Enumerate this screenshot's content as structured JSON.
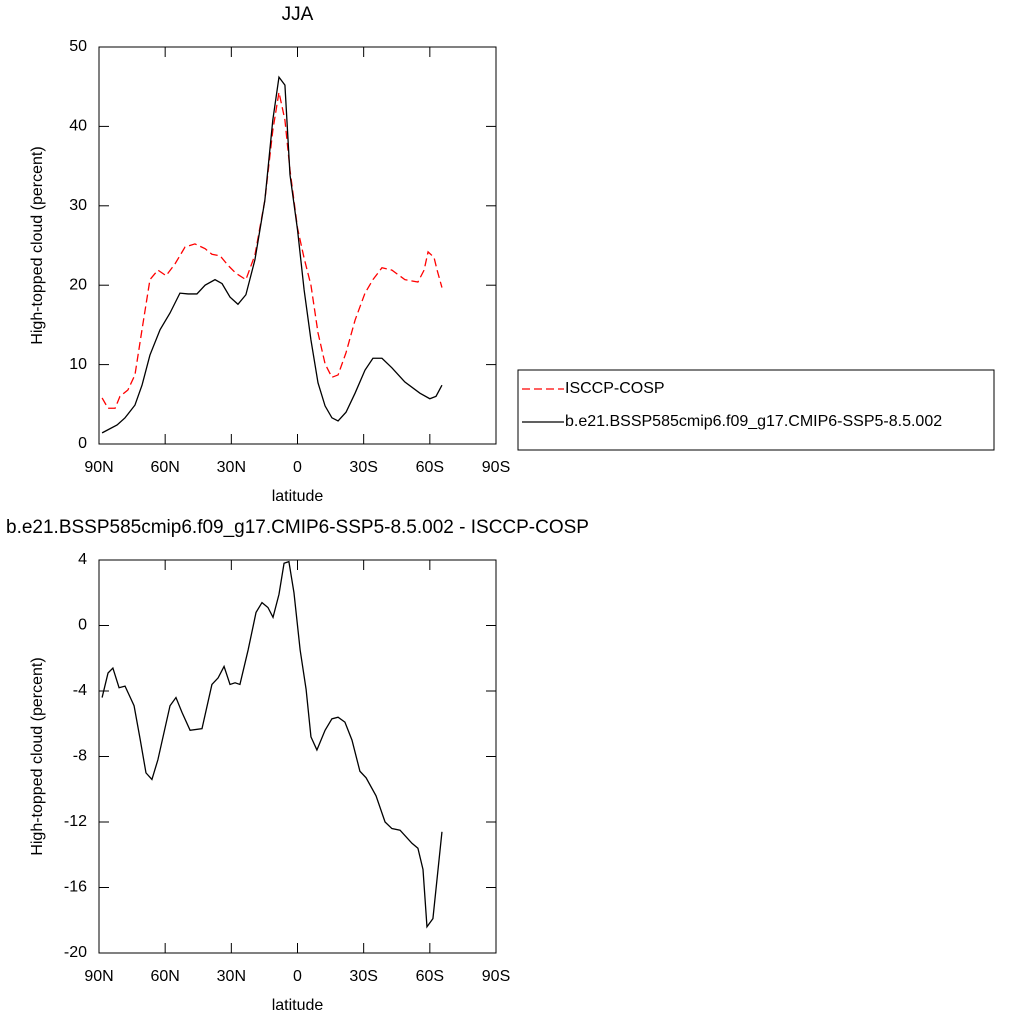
{
  "chart_data": [
    {
      "type": "line",
      "title": "JJA",
      "xlabel": "latitude",
      "ylabel": "High-topped cloud (percent)",
      "xlim": [
        90,
        -90
      ],
      "xticks": [
        {
          "value": 90,
          "label": "90N"
        },
        {
          "value": 60,
          "label": "60N"
        },
        {
          "value": 30,
          "label": "30N"
        },
        0,
        {
          "value": -30,
          "label": "30S"
        },
        {
          "value": -60,
          "label": "60S"
        },
        {
          "value": -90,
          "label": "90S"
        }
      ],
      "ylim": [
        0,
        50
      ],
      "yticks": [
        0,
        10,
        20,
        30,
        40,
        50
      ],
      "legend": "right",
      "series": [
        {
          "name": "ISCCP-COSP",
          "color": "#ff0000",
          "line_style": "dashed",
          "x": [
            88.6,
            85.9,
            82.7,
            80.5,
            76.9,
            73.7,
            70.5,
            66.9,
            63.3,
            59.6,
            55.5,
            51,
            46.5,
            41.9,
            38.8,
            35.1,
            31.5,
            27.9,
            23.4,
            19.3,
            14.8,
            11.2,
            8.4,
            5.7,
            3.4,
            0,
            -3,
            -6.1,
            -9.3,
            -12.5,
            -15.6,
            -18.4,
            -22,
            -26.1,
            -30.6,
            -34.2,
            -38.3,
            -42.8,
            -48.7,
            -54.6,
            -57.4,
            -59.2,
            -61.9,
            -63.3,
            -65.5
          ],
          "values": [
            5.8,
            4.5,
            4.5,
            6,
            6.8,
            8.7,
            14.4,
            20.7,
            21.9,
            21.2,
            22.7,
            24.8,
            25.2,
            24.6,
            23.9,
            23.7,
            22.5,
            21.5,
            20.7,
            23.8,
            30.7,
            39.5,
            44.3,
            40.8,
            34.5,
            27.2,
            23.4,
            20,
            14,
            10.1,
            8.4,
            8.7,
            11.5,
            15.6,
            19,
            20.7,
            22.2,
            21.9,
            20.7,
            20.4,
            21.9,
            24.2,
            23.5,
            21.9,
            19.7
          ]
        },
        {
          "name": "b.e21.BSSP585cmip6.f09_g17.CMIP6-SSP5-8.5.002",
          "color": "#000000",
          "line_style": "solid",
          "x": [
            88.6,
            81.8,
            78.2,
            73.7,
            70.5,
            66.9,
            62.3,
            57.8,
            53.3,
            49.6,
            45.6,
            41.9,
            37.4,
            34.2,
            30.6,
            27,
            23.4,
            19.3,
            14.8,
            11.2,
            8.4,
            5.7,
            3.4,
            0,
            -3,
            -6.1,
            -9.3,
            -12.5,
            -15.6,
            -18.4,
            -22,
            -26.1,
            -30.6,
            -34.2,
            -38.3,
            -42.8,
            -48.7,
            -55.5,
            -60,
            -62.8,
            -65.5
          ],
          "values": [
            1.4,
            2.4,
            3.3,
            4.9,
            7.4,
            11.2,
            14.4,
            16.5,
            19,
            18.9,
            18.9,
            20,
            20.7,
            20.2,
            18.5,
            17.6,
            18.8,
            23.2,
            30.7,
            40.8,
            46.2,
            45.2,
            33.9,
            27,
            19.4,
            13.1,
            7.7,
            4.8,
            3.3,
            2.9,
            4,
            6.4,
            9.3,
            10.8,
            10.8,
            9.6,
            7.8,
            6.4,
            5.7,
            6,
            7.4
          ]
        }
      ]
    },
    {
      "type": "line",
      "title": "b.e21.BSSP585cmip6.f09_g17.CMIP6-SSP5-8.5.002 - ISCCP-COSP",
      "xlabel": "latitude",
      "ylabel": "High-topped cloud (percent)",
      "xlim": [
        90,
        -90
      ],
      "xticks": [
        {
          "value": 90,
          "label": "90N"
        },
        {
          "value": 60,
          "label": "60N"
        },
        {
          "value": 30,
          "label": "30N"
        },
        0,
        {
          "value": -30,
          "label": "30S"
        },
        {
          "value": -60,
          "label": "60S"
        },
        {
          "value": -90,
          "label": "90S"
        }
      ],
      "ylim": [
        -20,
        4
      ],
      "yticks": [
        -20,
        -16,
        -12,
        -8,
        -4,
        0,
        4
      ],
      "color": "#000000",
      "x": [
        88.6,
        85.9,
        83.7,
        80.9,
        78.2,
        74.1,
        71.4,
        68.7,
        66,
        63.3,
        57.8,
        55.1,
        52.4,
        48.7,
        43.3,
        38.8,
        36,
        33.3,
        30.6,
        28.3,
        26.1,
        22.4,
        18.8,
        16.1,
        13.4,
        11.1,
        8.4,
        6.1,
        3.9,
        1.6,
        -1.2,
        -3.9,
        -6.1,
        -8.8,
        -12.5,
        -15.6,
        -18.4,
        -21.5,
        -24.7,
        -28.3,
        -31.1,
        -35.6,
        -39.7,
        -42.8,
        -46.5,
        -51.9,
        -54.6,
        -56.9,
        -58.7,
        -61.4,
        -65.5
      ],
      "values": [
        -4.4,
        -2.9,
        -2.6,
        -3.8,
        -3.7,
        -4.9,
        -6.9,
        -9,
        -9.4,
        -8.2,
        -4.9,
        -4.4,
        -5.3,
        -6.4,
        -6.3,
        -3.6,
        -3.2,
        -2.5,
        -3.6,
        -3.5,
        -3.6,
        -1.5,
        0.8,
        1.4,
        1.1,
        0.5,
        1.9,
        3.8,
        3.9,
        2,
        -1.5,
        -3.9,
        -6.8,
        -7.6,
        -6.4,
        -5.7,
        -5.6,
        -5.9,
        -7,
        -8.9,
        -9.3,
        -10.4,
        -12,
        -12.4,
        -12.5,
        -13.3,
        -13.6,
        -14.9,
        -18.4,
        -17.9,
        -12.6
      ]
    }
  ]
}
